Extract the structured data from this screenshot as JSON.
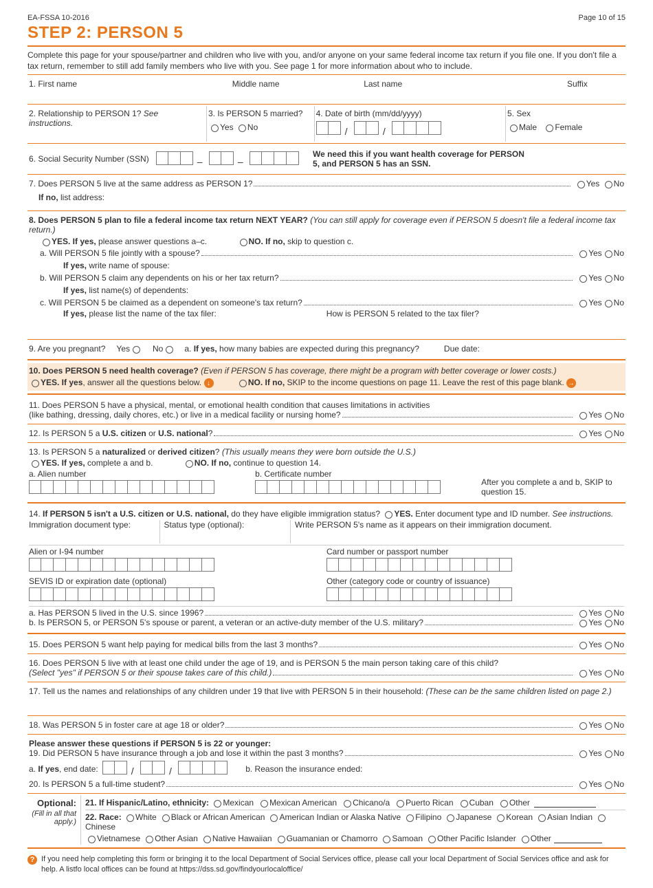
{
  "header": {
    "formId": "EA-FSSA 10-2016",
    "page": "Page 10 of 15"
  },
  "title": "STEP 2: PERSON 5",
  "intro": "Complete this page for your spouse/partner and children who live with you, and/or anyone on your same federal income tax return if you file one. If you don't file a tax return, remember to still add family members who live with you. See page 1 for more information about who to include.",
  "q1": {
    "first": "1. First name",
    "middle": "Middle name",
    "last": "Last name",
    "suffix": "Suffix"
  },
  "q2": "2. Relationship to PERSON 1? ",
  "q2i": "See instructions.",
  "q3": "3. Is PERSON 5 married?",
  "q4": "4. Date of birth (mm/dd/yyyy)",
  "q5": "5. Sex",
  "male": "Male",
  "female": "Female",
  "q6": "6. Social Security Number (SSN)",
  "q6note": "We need this if you want health coverage for PERSON 5, and PERSON 5 has an SSN.",
  "q7": "7. Does PERSON 5 live at the same address as PERSON 1?",
  "q7no": "If no, ",
  "q7noList": "list address:",
  "q8": "8. Does PERSON 5 plan to file a federal income tax return NEXT YEAR? ",
  "q8i": "(You can still apply for coverage even if PERSON 5 doesn't file a federal income tax return.)",
  "q8yes": "YES. If yes, ",
  "q8yesRest": "please answer questions a–c.",
  "q8no": "NO. If no, ",
  "q8noRest": "skip to question c.",
  "q8a": "a.  Will PERSON 5 file jointly with a spouse?",
  "q8aIf": "If yes, ",
  "q8aIfRest": "write name of spouse:",
  "q8b": "b.  Will PERSON 5 claim any dependents on his or her tax return?",
  "q8bIf": "If yes, ",
  "q8bIfRest": "list name(s) of dependents:",
  "q8c": "c.  Will PERSON 5 be claimed as a dependent on someone's tax return?",
  "q8cIf": "If yes, ",
  "q8cIfRest": "please list the name of the tax filer:",
  "q8cHow": "How is PERSON 5 related to the tax filer?",
  "q9": "9. Are you pregnant?",
  "q9a": "a. ",
  "q9ab": "If yes, ",
  "q9aRest": "how many babies are expected during this pregnancy?",
  "q9due": "Due date:",
  "q10": "10. Does PERSON 5 need health coverage? ",
  "q10i": "(Even if PERSON 5 has coverage, there might be a program with better coverage or lower costs.)",
  "q10yes": "YES. If yes",
  "q10yesRest": ", answer all the questions below.",
  "q10no": "NO. If no, ",
  "q10noRest": "SKIP to the income questions on page 11. Leave the rest of this page blank.",
  "q11a": "11. Does PERSON 5 have a physical, mental, or emotional health condition that causes limitations in activities",
  "q11b": "(like bathing, dressing, daily chores, etc.) or live in a medical facility or nursing home?",
  "q12a": "12. Is  PERSON 5 a ",
  "q12b": "U.S. citizen",
  "q12c": " or ",
  "q12d": "U.S. national",
  "q12e": "?",
  "q13a": "13. Is PERSON 5 a ",
  "q13b": "naturalized",
  "q13c": " or ",
  "q13d": "derived citizen",
  "q13e": "? ",
  "q13i": "(This usually means they were born outside the U.S.)",
  "q13yes": "YES. If yes, ",
  "q13yesRest": "complete a and b.",
  "q13no": "NO. If no, ",
  "q13noRest": "continue to question 14.",
  "q13alien": "a. Alien number",
  "q13cert": "b. Certificate number",
  "q13skip": "After you complete a and b, SKIP to question 15.",
  "q14a": "14. ",
  "q14b": "If PERSON 5 isn't a U.S. citizen or U.S. national,",
  "q14c": " do they have eligible immigration status?  ",
  "q14yes": "YES.",
  "q14yesRest": " Enter document type and ID number. ",
  "q14see": "See instructions.",
  "q14doc": "Immigration document type:",
  "q14status": "Status type (optional):",
  "q14write": "Write PERSON 5's name as it appears on their immigration document.",
  "q14alien": "Alien or I-94 number",
  "q14card": "Card number or passport number",
  "q14sevis": "SEVIS ID or expiration date (optional)",
  "q14other": "Other (category code or country of issuance)",
  "q14sub_a": "a. Has PERSON 5 lived in the U.S. since 1996?",
  "q14sub_b": "b. Is PERSON 5, or PERSON 5's spouse or parent, a veteran or an active-duty member of the U.S. military?",
  "q15": "15. Does PERSON 5 want help paying for medical bills from the last 3 months?",
  "q16a": "16. Does PERSON 5 live with at least one child under the age of 19, and is PERSON 5 the main person taking care of this child?",
  "q16b": "(Select \"yes\" if PERSON 5 or their spouse takes care of this child.)",
  "q17": "17. Tell us the names and relationships of any children under 19 that live with PERSON 5 in their household: ",
  "q17i": "(These can be the same children listed on page 2.)",
  "q18": "18. Was PERSON 5 in foster care at age 18 or older?",
  "q1922": "Please answer these questions if PERSON 5 is 22 or younger:",
  "q19": "19.  Did PERSON 5 have insurance through a job and lose it within the past 3 months?",
  "q19a": "a. ",
  "q19ab": "If yes",
  "q19aRest": ", end date:",
  "q19b": "b. Reason the insurance ended:",
  "q20": "20. Is PERSON 5 a full-time student?",
  "optional": "Optional:",
  "optionalNote": "(Fill in all that apply.)",
  "q21": "21. If Hispanic/Latino, ethnicity:",
  "eth": [
    "Mexican",
    "Mexican American",
    "Chicano/a",
    "Puerto Rican",
    "Cuban",
    "Other"
  ],
  "q22": "22. Race:",
  "race1": [
    "White",
    "Black or African American",
    "American Indian or Alaska Native",
    "Filipino",
    "Japanese",
    "Korean",
    "Asian Indian",
    "Chinese"
  ],
  "race2": [
    "Vietnamese",
    "Other Asian",
    "Native Hawaiian",
    "Guamanian or Chamorro",
    "Samoan",
    "Other Pacific Islander",
    "Other"
  ],
  "yes": "Yes",
  "no": "No",
  "footer": "If you need help completing this form or bringing it to the local Department of Social Services office, please call your local Department of Social Services office and ask for help. A listfo local offices can be found at https://dss.sd.gov/findyourlocaloffice/"
}
